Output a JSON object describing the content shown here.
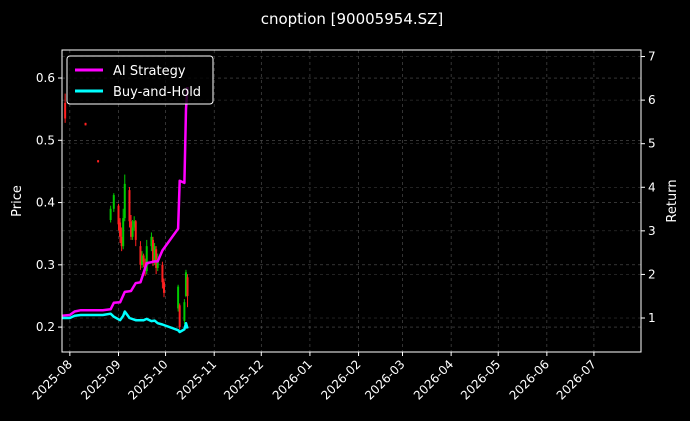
{
  "chart_data": {
    "type": "line",
    "title": "cnoption [90005954.SZ]",
    "ylabel_left": "Price",
    "ylabel_right": "Return",
    "grid": true,
    "legend_position": "top-left",
    "x_ticks": [
      "2025-08",
      "2025-09",
      "2025-10",
      "2025-11",
      "2025-12",
      "2026-01",
      "2026-02",
      "2026-03",
      "2026-04",
      "2026-05",
      "2026-06",
      "2026-07"
    ],
    "xlim": [
      "2025-07-27",
      "2026-07-31"
    ],
    "ylim_left": [
      0.16,
      0.645
    ],
    "yticks_left": [
      "0.2",
      "0.3",
      "0.4",
      "0.5",
      "0.6"
    ],
    "ylim_right": [
      0.22,
      7.15
    ],
    "yticks_right": [
      "1",
      "2",
      "3",
      "4",
      "5",
      "6",
      "7"
    ],
    "candles": [
      {
        "date": "2025-07-29",
        "open": 0.56,
        "close": 0.535,
        "high": 0.575,
        "low": 0.528
      },
      {
        "date": "2025-08-11",
        "open": 0.528,
        "close": 0.524,
        "high": 0.528,
        "low": 0.524
      },
      {
        "date": "2025-08-19",
        "open": 0.468,
        "close": 0.465,
        "high": 0.468,
        "low": 0.464
      },
      {
        "date": "2025-08-27",
        "open": 0.372,
        "close": 0.39,
        "high": 0.395,
        "low": 0.368
      },
      {
        "date": "2025-08-29",
        "open": 0.39,
        "close": 0.412,
        "high": 0.415,
        "low": 0.385
      },
      {
        "date": "2025-09-01",
        "open": 0.395,
        "close": 0.365,
        "high": 0.398,
        "low": 0.355
      },
      {
        "date": "2025-09-02",
        "open": 0.368,
        "close": 0.345,
        "high": 0.375,
        "low": 0.335
      },
      {
        "date": "2025-09-03",
        "open": 0.345,
        "close": 0.33,
        "high": 0.36,
        "low": 0.322
      },
      {
        "date": "2025-09-04",
        "open": 0.33,
        "close": 0.375,
        "high": 0.39,
        "low": 0.325
      },
      {
        "date": "2025-09-05",
        "open": 0.375,
        "close": 0.43,
        "high": 0.445,
        "low": 0.37
      },
      {
        "date": "2025-09-08",
        "open": 0.42,
        "close": 0.37,
        "high": 0.425,
        "low": 0.36
      },
      {
        "date": "2025-09-09",
        "open": 0.37,
        "close": 0.345,
        "high": 0.38,
        "low": 0.34
      },
      {
        "date": "2025-09-10",
        "open": 0.345,
        "close": 0.36,
        "high": 0.372,
        "low": 0.34
      },
      {
        "date": "2025-09-11",
        "open": 0.36,
        "close": 0.37,
        "high": 0.378,
        "low": 0.355
      },
      {
        "date": "2025-09-12",
        "open": 0.37,
        "close": 0.34,
        "high": 0.372,
        "low": 0.33
      },
      {
        "date": "2025-09-15",
        "open": 0.33,
        "close": 0.3,
        "high": 0.338,
        "low": 0.292
      },
      {
        "date": "2025-09-16",
        "open": 0.3,
        "close": 0.315,
        "high": 0.322,
        "low": 0.295
      },
      {
        "date": "2025-09-17",
        "open": 0.315,
        "close": 0.305,
        "high": 0.318,
        "low": 0.296
      },
      {
        "date": "2025-09-18",
        "open": 0.305,
        "close": 0.29,
        "high": 0.31,
        "low": 0.282
      },
      {
        "date": "2025-09-19",
        "open": 0.29,
        "close": 0.33,
        "high": 0.34,
        "low": 0.285
      },
      {
        "date": "2025-09-22",
        "open": 0.33,
        "close": 0.345,
        "high": 0.352,
        "low": 0.322
      },
      {
        "date": "2025-09-23",
        "open": 0.34,
        "close": 0.305,
        "high": 0.345,
        "low": 0.298
      },
      {
        "date": "2025-09-24",
        "open": 0.305,
        "close": 0.33,
        "high": 0.335,
        "low": 0.3
      },
      {
        "date": "2025-09-25",
        "open": 0.325,
        "close": 0.295,
        "high": 0.33,
        "low": 0.285
      },
      {
        "date": "2025-09-26",
        "open": 0.295,
        "close": 0.31,
        "high": 0.318,
        "low": 0.29
      },
      {
        "date": "2025-09-29",
        "open": 0.3,
        "close": 0.272,
        "high": 0.305,
        "low": 0.262
      },
      {
        "date": "2025-09-30",
        "open": 0.272,
        "close": 0.255,
        "high": 0.278,
        "low": 0.248
      },
      {
        "date": "2025-10-09",
        "open": 0.23,
        "close": 0.265,
        "high": 0.268,
        "low": 0.225
      },
      {
        "date": "2025-10-10",
        "open": 0.235,
        "close": 0.2,
        "high": 0.238,
        "low": 0.196
      },
      {
        "date": "2025-10-13",
        "open": 0.21,
        "close": 0.24,
        "high": 0.245,
        "low": 0.205
      },
      {
        "date": "2025-10-14",
        "open": 0.25,
        "close": 0.288,
        "high": 0.292,
        "low": 0.248
      },
      {
        "date": "2025-10-15",
        "open": 0.28,
        "close": 0.25,
        "high": 0.285,
        "low": 0.232
      }
    ],
    "series": [
      {
        "name": "AI Strategy",
        "color": "#ff00ff",
        "axis": "right",
        "points": [
          [
            "2025-07-27",
            1.05
          ],
          [
            "2025-08-01",
            1.07
          ],
          [
            "2025-08-04",
            1.15
          ],
          [
            "2025-08-08",
            1.18
          ],
          [
            "2025-08-15",
            1.18
          ],
          [
            "2025-08-22",
            1.18
          ],
          [
            "2025-08-27",
            1.2
          ],
          [
            "2025-08-29",
            1.35
          ],
          [
            "2025-09-02",
            1.36
          ],
          [
            "2025-09-05",
            1.6
          ],
          [
            "2025-09-09",
            1.62
          ],
          [
            "2025-09-12",
            1.8
          ],
          [
            "2025-09-15",
            1.82
          ],
          [
            "2025-09-17",
            2.04
          ],
          [
            "2025-09-19",
            2.26
          ],
          [
            "2025-09-22",
            2.28
          ],
          [
            "2025-09-24",
            2.3
          ],
          [
            "2025-09-26",
            2.3
          ],
          [
            "2025-09-29",
            2.55
          ],
          [
            "2025-10-09",
            3.05
          ],
          [
            "2025-10-10",
            4.15
          ],
          [
            "2025-10-13",
            4.1
          ],
          [
            "2025-10-14",
            5.8
          ],
          [
            "2025-10-15",
            6.3
          ]
        ]
      },
      {
        "name": "Buy-and-Hold",
        "color": "#00ffff",
        "axis": "right",
        "points": [
          [
            "2025-07-27",
            1.0
          ],
          [
            "2025-08-01",
            1.0
          ],
          [
            "2025-08-04",
            1.05
          ],
          [
            "2025-08-08",
            1.07
          ],
          [
            "2025-08-15",
            1.07
          ],
          [
            "2025-08-22",
            1.07
          ],
          [
            "2025-08-27",
            1.1
          ],
          [
            "2025-08-29",
            1.03
          ],
          [
            "2025-09-02",
            0.95
          ],
          [
            "2025-09-04",
            1.05
          ],
          [
            "2025-09-05",
            1.15
          ],
          [
            "2025-09-08",
            1.0
          ],
          [
            "2025-09-12",
            0.95
          ],
          [
            "2025-09-17",
            0.95
          ],
          [
            "2025-09-19",
            0.98
          ],
          [
            "2025-09-22",
            0.93
          ],
          [
            "2025-09-24",
            0.94
          ],
          [
            "2025-09-26",
            0.88
          ],
          [
            "2025-09-29",
            0.85
          ],
          [
            "2025-10-09",
            0.72
          ],
          [
            "2025-10-10",
            0.68
          ],
          [
            "2025-10-13",
            0.74
          ],
          [
            "2025-10-14",
            0.88
          ],
          [
            "2025-10-15",
            0.76
          ]
        ]
      }
    ]
  }
}
